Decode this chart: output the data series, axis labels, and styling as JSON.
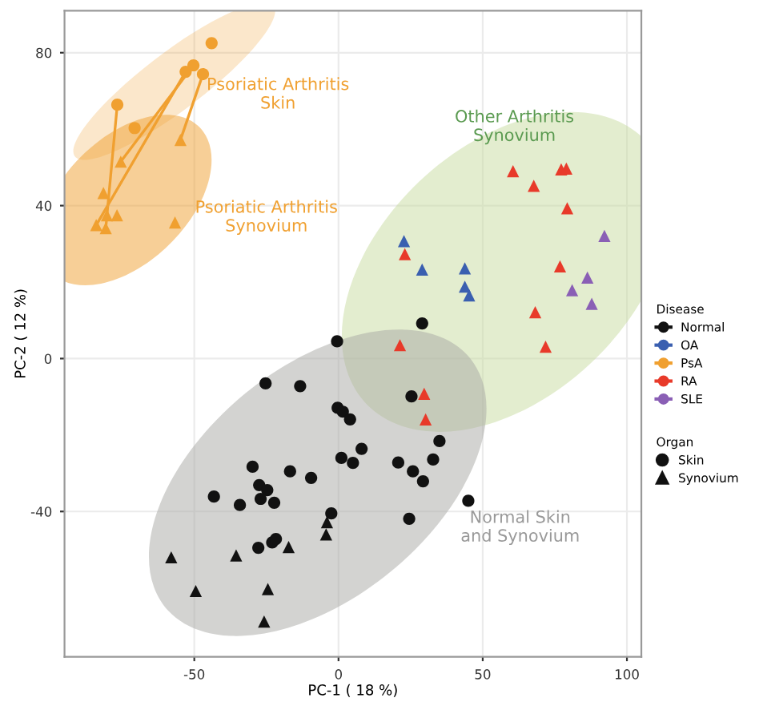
{
  "chart_data": {
    "type": "scatter",
    "xlabel": "PC-1 ( 18 %)",
    "ylabel": "PC-2 ( 12 %)",
    "xlim": [
      -95,
      105
    ],
    "ylim": [
      -78,
      91
    ],
    "xticks": [
      -50,
      0,
      50,
      100
    ],
    "yticks": [
      -40,
      0,
      40,
      80
    ],
    "grid": true,
    "legend": "right",
    "legend_title": [
      "Disease",
      "Organ"
    ],
    "series": [
      {
        "type": "line",
        "color": "#f0a030",
        "marker": "none",
        "x": [
          -76.7,
          -80.7
        ],
        "values": [
          66.4,
          34.1
        ]
      },
      {
        "type": "line",
        "color": "#f0a030",
        "marker": "none",
        "x": [
          -53,
          -84
        ],
        "values": [
          75,
          34.9
        ]
      },
      {
        "type": "line",
        "color": "#f0a030",
        "marker": "none",
        "x": [
          -50.3,
          -75.5
        ],
        "values": [
          76.7,
          51.5
        ]
      },
      {
        "type": "line",
        "color": "#f0a030",
        "marker": "none",
        "x": [
          -47,
          -54.8
        ],
        "values": [
          74.4,
          57.2
        ]
      },
      {
        "name": "Normal",
        "color": "#111111",
        "marker": "circle",
        "x": [
          -0.5,
          -25.3,
          -13.3,
          -0.3,
          1.5,
          4,
          35,
          8,
          1,
          5,
          20.7,
          32.8,
          25.8,
          29.3,
          -29.8,
          -16.8,
          -9.5,
          -27.5,
          -24.7,
          -43.2,
          -34.2,
          -27,
          -22.3,
          45,
          -2.5,
          24.5,
          -27.8,
          -23,
          -21.7,
          29,
          25.3
        ],
        "values": [
          4.5,
          -6.5,
          -7.2,
          -12.9,
          -13.9,
          -15.9,
          -21.6,
          -23.6,
          -26,
          -27.3,
          -27.2,
          -26.4,
          -29.5,
          -32.1,
          -28.3,
          -29.5,
          -31.2,
          -33.1,
          -34.4,
          -36.1,
          -38.3,
          -36.7,
          -37.7,
          -37.2,
          -40.5,
          -41.9,
          -49.5,
          -48.1,
          -47.2,
          9.2,
          -9.9
        ]
      },
      {
        "color": "#111111",
        "marker": "triangle",
        "x": [
          -4,
          -4.3,
          -17.3,
          -35.5,
          -58,
          -49.5,
          -24.5,
          -25.8
        ],
        "values": [
          -42.8,
          -46,
          -49.3,
          -51.5,
          -52,
          -60.8,
          -60.3,
          -68.8
        ]
      },
      {
        "name": "OA",
        "color": "#3a5fb0",
        "marker": "triangle",
        "x": [
          22.7,
          29,
          43.8,
          43.8,
          45.3
        ],
        "values": [
          30.7,
          23.3,
          23.6,
          18.8,
          16.5
        ]
      },
      {
        "name": "PsA",
        "color": "#f0a030",
        "marker": "circle",
        "x": [
          -44,
          -50.3,
          -53,
          -47,
          -76.7,
          -70.7
        ],
        "values": [
          82.5,
          76.7,
          75,
          74.4,
          66.4,
          60.3
        ]
      },
      {
        "color": "#f0a030",
        "marker": "triangle",
        "x": [
          -54.8,
          -75.5,
          -81.5,
          -80.3,
          -76.8,
          -84,
          -80.7,
          -56.7
        ],
        "values": [
          57.2,
          51.5,
          43.3,
          37.5,
          37.5,
          34.9,
          34.1,
          35.6
        ]
      },
      {
        "name": "RA",
        "color": "#e83a2a",
        "marker": "triangle",
        "x": [
          60.5,
          77.2,
          79,
          67.7,
          79.3,
          23,
          76.8,
          68.2,
          71.8,
          21.3,
          29.7,
          30.2
        ],
        "values": [
          49,
          49.5,
          49.7,
          45.2,
          39.3,
          27.3,
          24.1,
          12.1,
          3.1,
          3.5,
          -9.2,
          -15.9
        ]
      },
      {
        "name": "SLE",
        "color": "#8a5fb5",
        "marker": "triangle",
        "x": [
          92.2,
          86.3,
          81,
          87.8
        ],
        "values": [
          32.1,
          21.2,
          17.9,
          14.3
        ]
      },
      {
        "name": "Skin",
        "color": "#111111",
        "marker": "circle"
      },
      {
        "name": "Synovium",
        "color": "#111111",
        "marker": "triangle"
      }
    ],
    "annotations": [
      "Psoriatic Arthritis\nSkin",
      "Psoriatic Arthritis\nSynovium",
      "Other Arthritis\nSynovium",
      "Normal Skin\nand Synovium"
    ]
  }
}
